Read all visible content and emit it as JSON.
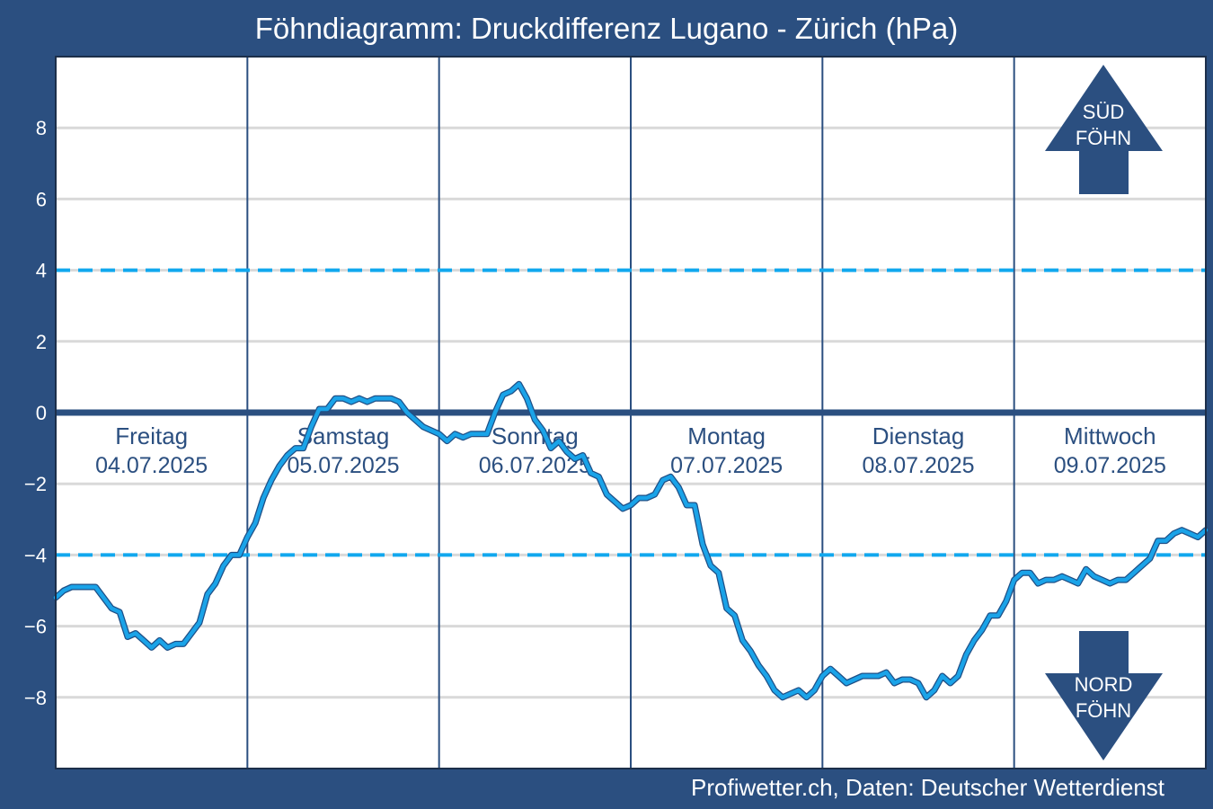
{
  "title": "Föhndiagramm: Druckdifferenz Lugano - Zürich (hPa)",
  "credit": "Profiwetter.ch, Daten: Deutscher Wetterdienst",
  "colors": {
    "background": "#2b4f80",
    "plot_background": "#ffffff",
    "series": "#1aa3e8",
    "series_outline": "#1f4f86",
    "threshold": "#11a8ee",
    "zero_line": "#2b4f80",
    "grid": "#d9d9d9",
    "day_divider": "#2b4f80",
    "label_text": "#2b4f80",
    "arrow": "#2b4f80"
  },
  "indicators": {
    "south": {
      "line1": "SÜD",
      "line2": "FÖHN",
      "icon": "arrow-up-icon"
    },
    "north": {
      "line1": "NORD",
      "line2": "FÖHN",
      "icon": "arrow-down-icon"
    }
  },
  "chart_data": {
    "type": "line",
    "title": "Föhndiagramm: Druckdifferenz Lugano - Zürich (hPa)",
    "xlabel": "",
    "ylabel": "",
    "ylim": [
      -10,
      10
    ],
    "xlim": [
      0,
      144
    ],
    "x_unit": "hours since 04.07.2025 00:00",
    "yticks": [
      8,
      6,
      4,
      2,
      0,
      -2,
      -4,
      -6,
      -8
    ],
    "ytick_labels": [
      "8",
      "6",
      "4",
      "2",
      "0",
      "−2",
      "−4",
      "−6",
      "−8"
    ],
    "grid": true,
    "zero_line": 0,
    "thresholds": [
      4,
      -4
    ],
    "days": [
      {
        "name": "Freitag",
        "date": "04.07.2025"
      },
      {
        "name": "Samstag",
        "date": "05.07.2025"
      },
      {
        "name": "Sonntag",
        "date": "06.07.2025"
      },
      {
        "name": "Montag",
        "date": "07.07.2025"
      },
      {
        "name": "Dienstag",
        "date": "08.07.2025"
      },
      {
        "name": "Mittwoch",
        "date": "09.07.2025"
      }
    ],
    "series": [
      {
        "name": "",
        "x": [
          0,
          1,
          2,
          3,
          4,
          5,
          6,
          7,
          8,
          9,
          10,
          11,
          12,
          13,
          14,
          15,
          16,
          17,
          18,
          19,
          20,
          21,
          22,
          23,
          24,
          25,
          26,
          27,
          28,
          29,
          30,
          31,
          32,
          33,
          34,
          35,
          36,
          37,
          38,
          39,
          40,
          41,
          42,
          43,
          44,
          45,
          46,
          47,
          48,
          49,
          50,
          51,
          52,
          53,
          54,
          55,
          56,
          57,
          58,
          59,
          60,
          61,
          62,
          63,
          64,
          65,
          66,
          67,
          68,
          69,
          70,
          71,
          72,
          73,
          74,
          75,
          76,
          77,
          78,
          79,
          80,
          81,
          82,
          83,
          84,
          85,
          86,
          87,
          88,
          89,
          90,
          91,
          92,
          93,
          94,
          95,
          96,
          97,
          98,
          99,
          100,
          101,
          102,
          103,
          104,
          105,
          106,
          107,
          108,
          109,
          110,
          111,
          112,
          113,
          114,
          115,
          116,
          117,
          118,
          119,
          120,
          121,
          122,
          123,
          124,
          125,
          126,
          127,
          128,
          129,
          130,
          131,
          132,
          133,
          134,
          135,
          136,
          137,
          138,
          139,
          140,
          141,
          142,
          143,
          144
        ],
        "values": [
          -5.2,
          -5.0,
          -4.9,
          -4.9,
          -4.9,
          -4.9,
          -5.2,
          -5.5,
          -5.6,
          -6.3,
          -6.2,
          -6.4,
          -6.6,
          -6.4,
          -6.6,
          -6.5,
          -6.5,
          -6.2,
          -5.9,
          -5.1,
          -4.8,
          -4.3,
          -4.0,
          -4.0,
          -3.5,
          -3.1,
          -2.4,
          -1.9,
          -1.5,
          -1.2,
          -1.0,
          -1.0,
          -0.4,
          0.1,
          0.1,
          0.4,
          0.4,
          0.3,
          0.4,
          0.3,
          0.4,
          0.4,
          0.4,
          0.3,
          0.0,
          -0.2,
          -0.4,
          -0.5,
          -0.6,
          -0.8,
          -0.6,
          -0.7,
          -0.6,
          -0.6,
          -0.6,
          0.0,
          0.5,
          0.6,
          0.8,
          0.4,
          -0.2,
          -0.5,
          -1.0,
          -0.8,
          -1.1,
          -1.3,
          -1.2,
          -1.7,
          -1.8,
          -2.3,
          -2.5,
          -2.7,
          -2.6,
          -2.4,
          -2.4,
          -2.3,
          -1.9,
          -1.8,
          -2.1,
          -2.6,
          -2.6,
          -3.7,
          -4.3,
          -4.5,
          -5.5,
          -5.7,
          -6.4,
          -6.7,
          -7.1,
          -7.4,
          -7.8,
          -8.0,
          -7.9,
          -7.8,
          -8.0,
          -7.8,
          -7.4,
          -7.2,
          -7.4,
          -7.6,
          -7.5,
          -7.4,
          -7.4,
          -7.4,
          -7.3,
          -7.6,
          -7.5,
          -7.5,
          -7.6,
          -8.0,
          -7.8,
          -7.4,
          -7.6,
          -7.4,
          -6.8,
          -6.4,
          -6.1,
          -5.7,
          -5.7,
          -5.3,
          -4.7,
          -4.5,
          -4.5,
          -4.8,
          -4.7,
          -4.7,
          -4.6,
          -4.7,
          -4.8,
          -4.4,
          -4.6,
          -4.7,
          -4.8,
          -4.7,
          -4.7,
          -4.5,
          -4.3,
          -4.1,
          -3.6,
          -3.6,
          -3.4,
          -3.3,
          -3.4,
          -3.5,
          -3.3
        ]
      }
    ]
  }
}
